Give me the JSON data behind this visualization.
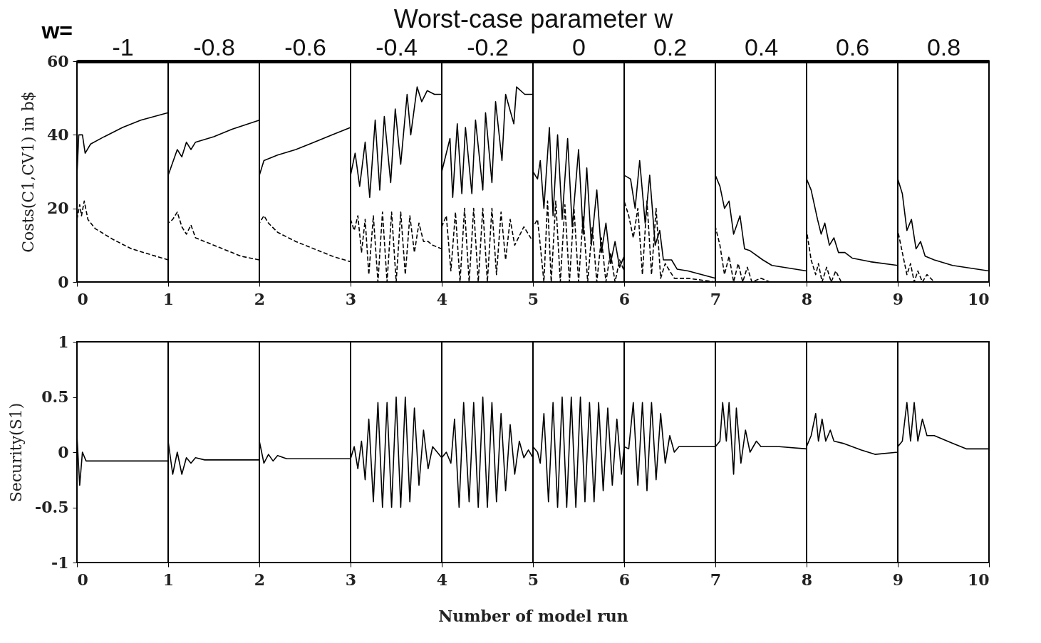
{
  "chart_data": [
    {
      "type": "line",
      "ylabel": "Costs(C1,CV1) in b$",
      "x2label": "Worst-case parameter w",
      "annotations": [
        "w="
      ],
      "xlim": [
        0,
        10
      ],
      "xticks": [
        0,
        1,
        2,
        3,
        4,
        5,
        6,
        7,
        8,
        9,
        10
      ],
      "ylim": [
        0,
        60
      ],
      "yticks": [
        0,
        20,
        40,
        60
      ],
      "x2lim": [
        -1.1,
        0.9
      ],
      "x2ticks": [
        -1,
        -0.8,
        -0.6,
        -0.4,
        -0.2,
        0,
        0.2,
        0.4,
        0.6,
        0.8
      ],
      "ref_lines": [
        {
          "axis": "x",
          "value": 1
        },
        {
          "axis": "x",
          "value": 2
        },
        {
          "axis": "x",
          "value": 3
        },
        {
          "axis": "x",
          "value": 4
        },
        {
          "axis": "x",
          "value": 5
        },
        {
          "axis": "x",
          "value": 6
        },
        {
          "axis": "x",
          "value": 7
        },
        {
          "axis": "x",
          "value": 8
        },
        {
          "axis": "x",
          "value": 9
        }
      ],
      "series": [
        {
          "color": "#000000",
          "line_style": "solid",
          "x": [
            0,
            0.02,
            0.06,
            0.09,
            0.15,
            0.3,
            0.5,
            0.7,
            1.0,
            1.0,
            1.1,
            1.15,
            1.2,
            1.25,
            1.3,
            1.5,
            1.7,
            2.0,
            2.0,
            2.05,
            2.2,
            2.4,
            2.6,
            2.8,
            3.0,
            3.0,
            3.05,
            3.1,
            3.16,
            3.21,
            3.27,
            3.32,
            3.37,
            3.44,
            3.49,
            3.55,
            3.62,
            3.66,
            3.73,
            3.78,
            3.84,
            3.92,
            4.0,
            4.0,
            4.09,
            4.12,
            4.17,
            4.22,
            4.26,
            4.33,
            4.37,
            4.45,
            4.48,
            4.55,
            4.59,
            4.66,
            4.7,
            4.79,
            4.82,
            4.91,
            5.0,
            5.0,
            5.05,
            5.08,
            5.12,
            5.18,
            5.22,
            5.27,
            5.32,
            5.38,
            5.43,
            5.5,
            5.55,
            5.59,
            5.64,
            5.7,
            5.75,
            5.8,
            5.85,
            5.9,
            5.95,
            6.0,
            6.0,
            6.07,
            6.12,
            6.17,
            6.23,
            6.28,
            6.34,
            6.39,
            6.43,
            6.52,
            6.58,
            6.7,
            7.0,
            7.0,
            7.05,
            7.1,
            7.15,
            7.2,
            7.27,
            7.32,
            7.38,
            7.52,
            7.62,
            8.0,
            8.0,
            8.05,
            8.12,
            8.16,
            8.2,
            8.25,
            8.3,
            8.35,
            8.42,
            8.5,
            8.7,
            9.0,
            9.0,
            9.05,
            9.1,
            9.15,
            9.2,
            9.25,
            9.3,
            9.4,
            9.6,
            10.0
          ],
          "values": [
            29,
            40,
            40,
            35,
            37.5,
            39.5,
            42,
            44,
            46,
            29,
            36,
            34,
            38,
            36,
            38,
            39.5,
            41.5,
            44,
            29,
            33,
            34.5,
            36,
            38,
            40,
            42,
            29,
            35,
            26,
            38,
            23,
            44,
            25,
            45,
            27,
            47,
            32,
            51,
            40,
            53,
            49,
            52,
            51,
            51,
            30,
            39,
            23,
            43,
            24,
            42,
            24,
            44,
            25,
            46,
            27,
            49,
            33,
            51,
            43,
            53,
            51,
            51,
            30,
            28,
            33,
            20,
            42,
            18,
            40,
            17,
            39,
            15,
            36,
            13,
            31,
            10,
            25,
            8,
            16,
            5,
            11,
            4,
            7,
            29,
            28,
            20,
            33,
            16,
            29,
            10,
            14,
            6,
            6,
            3.5,
            3,
            1,
            29,
            26,
            20,
            22,
            13,
            18,
            9,
            8.5,
            6,
            4.5,
            3,
            28,
            25,
            17,
            13,
            16,
            10,
            12,
            8,
            8,
            6.5,
            5.5,
            4.5,
            28,
            24,
            14,
            17,
            9,
            11,
            7,
            6,
            4.5,
            3
          ]
        },
        {
          "color": "#000000",
          "line_style": "dashed",
          "x": [
            0,
            0.03,
            0.05,
            0.08,
            0.12,
            0.2,
            0.4,
            0.6,
            0.8,
            1.0,
            1.0,
            1.05,
            1.1,
            1.15,
            1.2,
            1.25,
            1.3,
            1.4,
            1.6,
            1.8,
            2.0,
            2.0,
            2.05,
            2.1,
            2.2,
            2.4,
            2.6,
            2.8,
            3.0,
            3.0,
            3.04,
            3.08,
            3.12,
            3.16,
            3.2,
            3.25,
            3.3,
            3.35,
            3.4,
            3.45,
            3.5,
            3.55,
            3.6,
            3.65,
            3.7,
            3.75,
            3.8,
            3.85,
            3.9,
            4.0,
            4.0,
            4.05,
            4.1,
            4.15,
            4.2,
            4.25,
            4.3,
            4.35,
            4.4,
            4.45,
            4.5,
            4.55,
            4.6,
            4.65,
            4.7,
            4.75,
            4.8,
            4.9,
            5.0,
            5.0,
            5.05,
            5.08,
            5.12,
            5.16,
            5.2,
            5.25,
            5.3,
            5.35,
            5.4,
            5.45,
            5.5,
            5.55,
            5.6,
            5.65,
            5.7,
            5.75,
            5.8,
            5.85,
            5.9,
            5.95,
            6.0,
            6.0,
            6.05,
            6.1,
            6.15,
            6.2,
            6.25,
            6.3,
            6.35,
            6.4,
            6.45,
            6.5,
            6.55,
            6.7,
            7.0,
            7.0,
            7.05,
            7.1,
            7.15,
            7.2,
            7.25,
            7.3,
            7.35,
            7.4,
            7.5,
            7.6,
            8.0,
            8.0,
            8.05,
            8.1,
            8.13,
            8.17,
            8.22,
            8.27,
            8.32,
            8.38,
            9.0,
            9.0,
            9.05,
            9.1,
            9.14,
            9.18,
            9.22,
            9.27,
            9.32,
            9.4,
            10.0
          ],
          "values": [
            17,
            21,
            18,
            22,
            17,
            14.5,
            11.5,
            9,
            7.5,
            6,
            16,
            17,
            19,
            15,
            13,
            15.5,
            12,
            11,
            9,
            7,
            6,
            16,
            18,
            16,
            13.5,
            11,
            9,
            7,
            5.5,
            17,
            14,
            18,
            8,
            17,
            2,
            18,
            0,
            19,
            0,
            19,
            0,
            19,
            2,
            18,
            8,
            16,
            11,
            11,
            10,
            9,
            15,
            18,
            3,
            19,
            0,
            20,
            0,
            20,
            0,
            20,
            0,
            20,
            2,
            19,
            6,
            17,
            10,
            15,
            11,
            15,
            17,
            10,
            0,
            22,
            0,
            22,
            0,
            21,
            0,
            20,
            0,
            18,
            0,
            15,
            0,
            12,
            0,
            8,
            0,
            6,
            3,
            22,
            18,
            12,
            20,
            2,
            22,
            2,
            20,
            1,
            5,
            3,
            1,
            1,
            0,
            15,
            10,
            2,
            7,
            0,
            5,
            0,
            4,
            0,
            1,
            0,
            0,
            14,
            6,
            2,
            5,
            0,
            4,
            0,
            3,
            0,
            0,
            14,
            8,
            2,
            5,
            0,
            3,
            0,
            2,
            0,
            0
          ]
        }
      ]
    },
    {
      "type": "line",
      "xlabel": "Number of model run",
      "ylabel": "Security(S1)",
      "xlim": [
        0,
        10
      ],
      "xticks": [
        0,
        1,
        2,
        3,
        4,
        5,
        6,
        7,
        8,
        9,
        10
      ],
      "ylim": [
        -1,
        1
      ],
      "yticks": [
        -1,
        -0.5,
        0,
        0.5,
        1
      ],
      "ref_lines": [
        {
          "axis": "x",
          "value": 1
        },
        {
          "axis": "x",
          "value": 2
        },
        {
          "axis": "x",
          "value": 3
        },
        {
          "axis": "x",
          "value": 4
        },
        {
          "axis": "x",
          "value": 5
        },
        {
          "axis": "x",
          "value": 6
        },
        {
          "axis": "x",
          "value": 7
        },
        {
          "axis": "x",
          "value": 8
        },
        {
          "axis": "x",
          "value": 9
        }
      ],
      "series": [
        {
          "color": "#000000",
          "line_style": "solid",
          "x": [
            0,
            0.03,
            0.06,
            0.1,
            0.5,
            1.0,
            1.0,
            1.05,
            1.1,
            1.15,
            1.2,
            1.25,
            1.3,
            1.4,
            2.0,
            2.0,
            2.05,
            2.1,
            2.15,
            2.2,
            2.3,
            3.0,
            3.04,
            3.08,
            3.12,
            3.16,
            3.2,
            3.25,
            3.3,
            3.35,
            3.4,
            3.45,
            3.5,
            3.55,
            3.6,
            3.65,
            3.7,
            3.75,
            3.8,
            3.85,
            3.9,
            4.0,
            4.05,
            4.1,
            4.14,
            4.19,
            4.24,
            4.3,
            4.35,
            4.4,
            4.45,
            4.5,
            4.55,
            4.6,
            4.65,
            4.7,
            4.75,
            4.8,
            4.85,
            4.9,
            4.95,
            5.0,
            5.0,
            5.05,
            5.08,
            5.12,
            5.17,
            5.22,
            5.27,
            5.32,
            5.37,
            5.42,
            5.47,
            5.52,
            5.57,
            5.62,
            5.67,
            5.72,
            5.77,
            5.82,
            5.87,
            5.92,
            5.97,
            6.0,
            6.05,
            6.1,
            6.15,
            6.2,
            6.25,
            6.3,
            6.35,
            6.4,
            6.45,
            6.5,
            6.55,
            6.6,
            6.7,
            7.0,
            7.05,
            7.08,
            7.12,
            7.15,
            7.2,
            7.23,
            7.28,
            7.33,
            7.38,
            7.45,
            7.5,
            7.7,
            8.0,
            8.0,
            8.05,
            8.1,
            8.13,
            8.17,
            8.21,
            8.26,
            8.3,
            8.4,
            8.6,
            8.75,
            9.0,
            9.0,
            9.05,
            9.1,
            9.14,
            9.18,
            9.22,
            9.27,
            9.32,
            9.4,
            9.6,
            9.75,
            10.0
          ],
          "values": [
            0.15,
            -0.3,
            0.0,
            -0.08,
            -0.08,
            -0.08,
            0.1,
            -0.2,
            0.0,
            -0.2,
            -0.05,
            -0.1,
            -0.05,
            -0.07,
            -0.07,
            0.1,
            -0.1,
            -0.02,
            -0.08,
            -0.03,
            -0.06,
            -0.06,
            0.05,
            -0.15,
            0.1,
            -0.25,
            0.3,
            -0.45,
            0.45,
            -0.5,
            0.45,
            -0.5,
            0.5,
            -0.5,
            0.5,
            -0.45,
            0.4,
            -0.3,
            0.2,
            -0.15,
            0.05,
            -0.05,
            0.0,
            -0.1,
            0.3,
            -0.5,
            0.45,
            -0.45,
            0.45,
            -0.5,
            0.5,
            -0.5,
            0.45,
            -0.45,
            0.35,
            -0.35,
            0.25,
            -0.2,
            0.1,
            -0.05,
            0.02,
            -0.05,
            0.05,
            0.0,
            -0.1,
            0.35,
            -0.45,
            0.45,
            -0.5,
            0.5,
            -0.5,
            0.5,
            -0.5,
            0.5,
            -0.45,
            0.45,
            -0.45,
            0.45,
            -0.35,
            0.4,
            -0.3,
            0.3,
            -0.2,
            0.05,
            0.03,
            0.45,
            -0.3,
            0.45,
            -0.35,
            0.45,
            -0.25,
            0.35,
            -0.1,
            0.15,
            0.0,
            0.05,
            0.05,
            0.05,
            0.1,
            0.45,
            0.1,
            0.45,
            -0.2,
            0.4,
            -0.1,
            0.2,
            0.0,
            0.1,
            0.05,
            0.05,
            0.03,
            0.05,
            0.15,
            0.35,
            0.1,
            0.3,
            0.1,
            0.2,
            0.1,
            0.08,
            0.02,
            -0.02,
            0.0,
            0.05,
            0.1,
            0.45,
            0.1,
            0.45,
            0.1,
            0.3,
            0.15,
            0.15,
            0.08,
            0.03,
            0.03
          ]
        }
      ]
    }
  ]
}
